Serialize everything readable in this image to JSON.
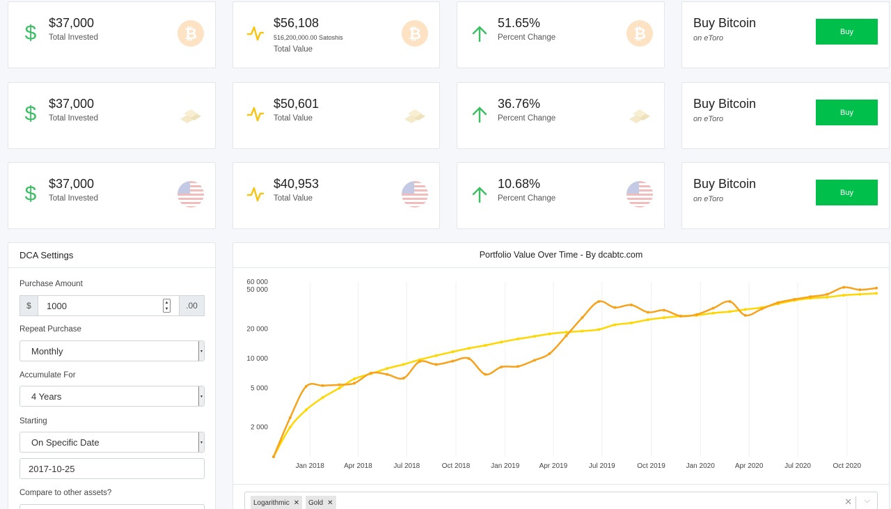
{
  "rows": [
    {
      "asset_icon": "bitcoin-icon",
      "invested": {
        "value": "$37,000",
        "label": "Total Invested"
      },
      "total": {
        "value": "$56,108",
        "satoshis": "516,200,000.00 Satoshis",
        "label": "Total Value"
      },
      "change": {
        "value": "51.65%",
        "label": "Percent Change"
      },
      "buy": {
        "title": "Buy Bitcoin",
        "sub": "on eToro",
        "button": "Buy"
      }
    },
    {
      "asset_icon": "gold-bars-icon",
      "invested": {
        "value": "$37,000",
        "label": "Total Invested"
      },
      "total": {
        "value": "$50,601",
        "label": "Total Value"
      },
      "change": {
        "value": "36.76%",
        "label": "Percent Change"
      },
      "buy": {
        "title": "Buy Bitcoin",
        "sub": "on eToro",
        "button": "Buy"
      }
    },
    {
      "asset_icon": "us-flag-icon",
      "invested": {
        "value": "$37,000",
        "label": "Total Invested"
      },
      "total": {
        "value": "$40,953",
        "label": "Total Value"
      },
      "change": {
        "value": "10.68%",
        "label": "Percent Change"
      },
      "buy": {
        "title": "Buy Bitcoin",
        "sub": "on eToro",
        "button": "Buy"
      }
    }
  ],
  "settings": {
    "title": "DCA Settings",
    "purchase_amount": {
      "label": "Purchase Amount",
      "prefix": "$",
      "value": "1000",
      "suffix": ".00"
    },
    "repeat_purchase": {
      "label": "Repeat Purchase",
      "value": "Monthly"
    },
    "accumulate_for": {
      "label": "Accumulate For",
      "value": "4 Years"
    },
    "starting": {
      "label": "Starting",
      "value": "On Specific Date",
      "date": "2017-10-25"
    },
    "compare_label": "Compare to other assets?"
  },
  "chart_panel": {
    "compare_tags": [
      "Logarithmic",
      "Gold"
    ],
    "clear_symbol": "✕",
    "dropdown_symbol": "⌵"
  },
  "colors": {
    "bitcoin_series": "#f7a21b",
    "gold_series": "#ffd700",
    "buy_button": "#00c04b",
    "accent_yellow": "#f5c518",
    "accent_green": "#3cbf63"
  },
  "chart_data": {
    "type": "line",
    "title": "Portfolio Value Over Time - By dcabtc.com",
    "y_scale": "log",
    "ylim": [
      1000,
      60000
    ],
    "y_ticks": [
      {
        "value": 60000,
        "label": "60 000"
      },
      {
        "value": 50000,
        "label": "50 000"
      },
      {
        "value": 20000,
        "label": "20 000"
      },
      {
        "value": 10000,
        "label": "10 000"
      },
      {
        "value": 5000,
        "label": "5 000"
      },
      {
        "value": 2000,
        "label": "2 000"
      }
    ],
    "x_start": "2017-10-25",
    "x_end": "2020-11-25",
    "x_ticks": [
      {
        "date": "2018-01-01",
        "label": "Jan 2018"
      },
      {
        "date": "2018-04-01",
        "label": "Apr 2018"
      },
      {
        "date": "2018-07-01",
        "label": "Jul 2018"
      },
      {
        "date": "2018-10-01",
        "label": "Oct 2018"
      },
      {
        "date": "2019-01-01",
        "label": "Jan 2019"
      },
      {
        "date": "2019-04-01",
        "label": "Apr 2019"
      },
      {
        "date": "2019-07-01",
        "label": "Jul 2019"
      },
      {
        "date": "2019-10-01",
        "label": "Oct 2019"
      },
      {
        "date": "2020-01-01",
        "label": "Jan 2020"
      },
      {
        "date": "2020-04-01",
        "label": "Apr 2020"
      },
      {
        "date": "2020-07-01",
        "label": "Jul 2020"
      },
      {
        "date": "2020-10-01",
        "label": "Oct 2020"
      }
    ],
    "grid": true,
    "x": [
      "2017-10-25",
      "2017-11-25",
      "2017-12-25",
      "2018-01-25",
      "2018-02-25",
      "2018-03-25",
      "2018-04-25",
      "2018-05-25",
      "2018-06-25",
      "2018-07-25",
      "2018-08-25",
      "2018-09-25",
      "2018-10-25",
      "2018-11-25",
      "2018-12-25",
      "2019-01-25",
      "2019-02-25",
      "2019-03-25",
      "2019-04-25",
      "2019-05-25",
      "2019-06-25",
      "2019-07-25",
      "2019-08-25",
      "2019-09-25",
      "2019-10-25",
      "2019-11-25",
      "2019-12-25",
      "2020-01-25",
      "2020-02-25",
      "2020-03-25",
      "2020-04-25",
      "2020-05-25",
      "2020-06-25",
      "2020-07-25",
      "2020-08-25",
      "2020-09-25",
      "2020-10-25",
      "2020-11-25"
    ],
    "series": [
      {
        "color": "#f7a21b",
        "values": [
          1000,
          2500,
          5200,
          5300,
          5400,
          5600,
          7100,
          6900,
          6300,
          9300,
          8700,
          9400,
          10000,
          6900,
          8200,
          8300,
          9600,
          11200,
          17000,
          26000,
          38000,
          33000,
          35000,
          29500,
          31000,
          27000,
          28000,
          32500,
          38000,
          27500,
          32000,
          37000,
          40000,
          42500,
          45000,
          53000,
          50000,
          52000
        ]
      },
      {
        "color": "#ffd700",
        "values": [
          1000,
          2000,
          3000,
          4000,
          5000,
          6200,
          7000,
          7900,
          8700,
          9700,
          10700,
          11700,
          12700,
          13600,
          14700,
          15800,
          16800,
          17800,
          18500,
          19000,
          19700,
          22000,
          23000,
          24800,
          26000,
          27000,
          27500,
          29000,
          30000,
          31500,
          33000,
          36000,
          39000,
          41000,
          42000,
          44000,
          45000,
          46000
        ]
      }
    ]
  }
}
